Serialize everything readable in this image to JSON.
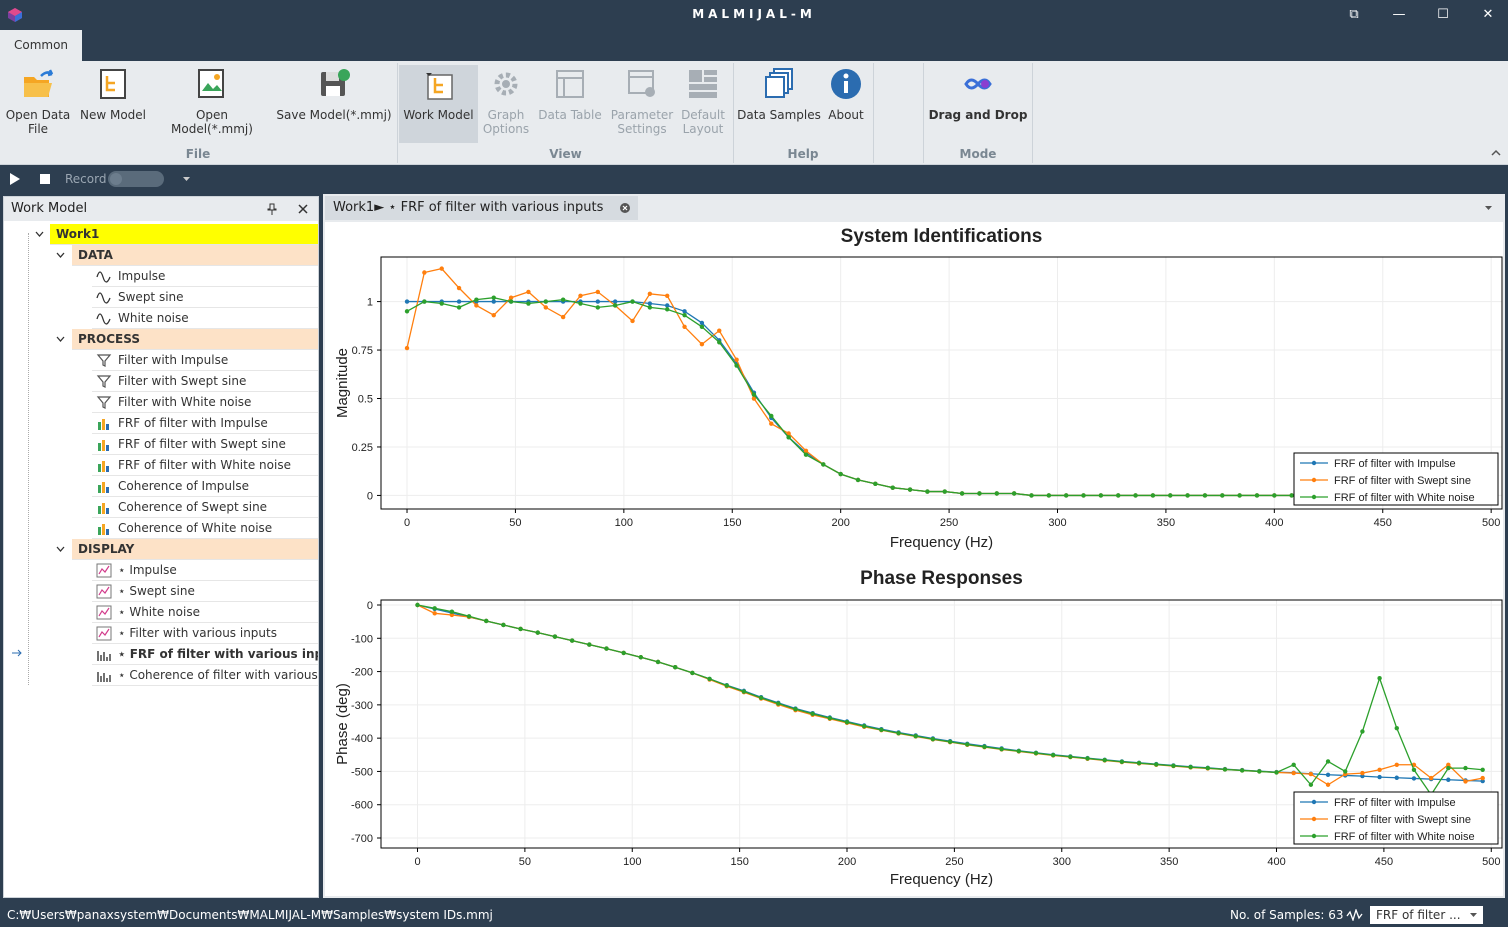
{
  "window": {
    "title": "MALMIJAL-M",
    "controls": [
      "⧉",
      "—",
      "☐",
      "✕"
    ]
  },
  "tabs": [
    "Common"
  ],
  "ribbon": {
    "file": {
      "label": "File",
      "buttons": [
        "Open Data File",
        "New Model",
        "Open Model(*.mmj)",
        "Save Model(*.mmj)"
      ]
    },
    "view": {
      "label": "View",
      "buttons": [
        "Work Model",
        "Graph Options",
        "Data Table",
        "Parameter Settings",
        "Default Layout"
      ]
    },
    "help": {
      "label": "Help",
      "buttons": [
        "Data Samples",
        "About"
      ]
    },
    "mode": {
      "label": "Mode",
      "buttons": [
        "Drag and Drop"
      ]
    }
  },
  "toolbar": {
    "record_label": "Record"
  },
  "work_model": {
    "title": "Work Model",
    "root": "Work1",
    "data_label": "DATA",
    "data_items": [
      "Impulse",
      "Swept sine",
      "White noise"
    ],
    "process_label": "PROCESS",
    "process_items": [
      "Filter with Impulse",
      "Filter with Swept sine",
      "Filter with White noise",
      "FRF of filter with Impulse",
      "FRF of filter with Swept sine",
      "FRF of filter with White noise",
      "Coherence of Impulse",
      "Coherence of Swept sine",
      "Coherence of White noise"
    ],
    "display_label": "DISPLAY",
    "display_items": [
      "⋆ Impulse",
      "⋆ Swept sine",
      "⋆ White noise",
      "⋆ Filter with various inputs",
      "⋆ FRF of filter with various inputs",
      "⋆ Coherence of filter with various inputs"
    ]
  },
  "document": {
    "tab_label": "Work1► ⋆ FRF of filter with various inputs"
  },
  "chart_data": [
    {
      "type": "line",
      "title": "System Identifications",
      "xlabel": "Frequency (Hz)",
      "ylabel": "Magnitude",
      "xlim": [
        -12,
        505
      ],
      "ylim": [
        -0.07,
        1.23
      ],
      "xticks": [
        0,
        50,
        100,
        150,
        200,
        250,
        300,
        350,
        400,
        450,
        500
      ],
      "yticks": [
        0,
        0.25,
        0.5,
        0.75,
        1
      ],
      "ytick_labels": [
        "0",
        "0.25",
        "0.5",
        "0.75",
        "1"
      ],
      "legend": "bottom-right",
      "x": [
        0,
        8,
        16,
        24,
        32,
        40,
        48,
        56,
        64,
        72,
        80,
        88,
        96,
        104,
        112,
        120,
        128,
        136,
        144,
        152,
        160,
        168,
        176,
        184,
        192,
        200,
        208,
        216,
        224,
        232,
        240,
        248,
        256,
        264,
        272,
        280,
        288,
        296,
        304,
        312,
        320,
        328,
        336,
        344,
        352,
        360,
        368,
        376,
        384,
        392,
        400,
        408,
        416,
        424,
        432,
        440,
        448,
        456,
        464,
        472,
        480,
        488,
        496
      ],
      "series": [
        {
          "name": "FRF of filter with Impulse",
          "color": "#1f77b4",
          "values": [
            1,
            1,
            1,
            1,
            1,
            1,
            1,
            1,
            1,
            1,
            1,
            1,
            1,
            1,
            0.99,
            0.98,
            0.95,
            0.89,
            0.8,
            0.68,
            0.53,
            0.4,
            0.3,
            0.22,
            0.16,
            0.11,
            0.08,
            0.06,
            0.04,
            0.03,
            0.02,
            0.02,
            0.01,
            0.01,
            0.01,
            0.01,
            0,
            0,
            0,
            0,
            0,
            0,
            0,
            0,
            0,
            0,
            0,
            0,
            0,
            0,
            0,
            0,
            0,
            0,
            0,
            0,
            0,
            0,
            0,
            0,
            0,
            0,
            0
          ]
        },
        {
          "name": "FRF of filter with Swept sine",
          "color": "#ff7f0e",
          "values": [
            0.76,
            1.15,
            1.17,
            1.07,
            0.98,
            0.93,
            1.02,
            1.05,
            0.97,
            0.92,
            1.03,
            1.05,
            0.98,
            0.9,
            1.04,
            1.03,
            0.87,
            0.78,
            0.85,
            0.7,
            0.5,
            0.37,
            0.32,
            0.23,
            0.16,
            0.11,
            0.08,
            0.06,
            0.04,
            0.03,
            0.02,
            0.02,
            0.01,
            0.01,
            0.01,
            0.01,
            0,
            0,
            0,
            0,
            0,
            0,
            0,
            0,
            0,
            0,
            0,
            0,
            0,
            0,
            0,
            0,
            0,
            0,
            0,
            0,
            0,
            0,
            0,
            0,
            0,
            0,
            0
          ]
        },
        {
          "name": "FRF of filter with White noise",
          "color": "#2ca02c",
          "values": [
            0.95,
            1,
            0.99,
            0.97,
            1.01,
            1.02,
            1,
            0.99,
            1,
            1.01,
            0.99,
            0.97,
            0.98,
            1,
            0.97,
            0.96,
            0.93,
            0.87,
            0.79,
            0.67,
            0.52,
            0.41,
            0.3,
            0.21,
            0.16,
            0.11,
            0.08,
            0.06,
            0.04,
            0.03,
            0.02,
            0.02,
            0.01,
            0.01,
            0.01,
            0.01,
            0,
            0,
            0,
            0,
            0,
            0,
            0,
            0,
            0,
            0,
            0,
            0,
            0,
            0,
            0,
            0,
            0,
            0,
            0,
            0,
            0,
            0,
            0,
            0,
            0,
            0,
            0
          ]
        }
      ]
    },
    {
      "type": "line",
      "title": "Phase Responses",
      "xlabel": "Frequency (Hz)",
      "ylabel": "Phase (deg)",
      "xlim": [
        -17,
        505
      ],
      "ylim": [
        -730,
        15
      ],
      "xticks": [
        0,
        50,
        100,
        150,
        200,
        250,
        300,
        350,
        400,
        450,
        500
      ],
      "yticks": [
        0,
        -100,
        -200,
        -300,
        -400,
        -500,
        -600,
        -700
      ],
      "ytick_labels": [
        "0",
        "-100",
        "-200",
        "-300",
        "-400",
        "-500",
        "-600",
        "-700"
      ],
      "legend": "bottom-right",
      "x": [
        0,
        8,
        16,
        24,
        32,
        40,
        48,
        56,
        64,
        72,
        80,
        88,
        96,
        104,
        112,
        120,
        128,
        136,
        144,
        152,
        160,
        168,
        176,
        184,
        192,
        200,
        208,
        216,
        224,
        232,
        240,
        248,
        256,
        264,
        272,
        280,
        288,
        296,
        304,
        312,
        320,
        328,
        336,
        344,
        352,
        360,
        368,
        376,
        384,
        392,
        400,
        408,
        416,
        424,
        432,
        440,
        448,
        456,
        464,
        472,
        480,
        488,
        496
      ],
      "series": [
        {
          "name": "FRF of filter with Impulse",
          "color": "#1f77b4",
          "values": [
            0,
            -12,
            -24,
            -36,
            -48,
            -60,
            -72,
            -83,
            -95,
            -107,
            -119,
            -131,
            -144,
            -157,
            -171,
            -187,
            -204,
            -222,
            -241,
            -258,
            -277,
            -294,
            -311,
            -325,
            -338,
            -350,
            -362,
            -373,
            -383,
            -392,
            -401,
            -409,
            -417,
            -424,
            -431,
            -438,
            -444,
            -450,
            -455,
            -460,
            -465,
            -470,
            -474,
            -478,
            -482,
            -486,
            -489,
            -493,
            -496,
            -499,
            -502,
            -504,
            -507,
            -510,
            -512,
            -514,
            -517,
            -519,
            -521,
            -523,
            -525,
            -527,
            -529
          ]
        },
        {
          "name": "FRF of filter with Swept sine",
          "color": "#ff7f0e",
          "values": [
            0,
            -25,
            -30,
            -36,
            -48,
            -60,
            -72,
            -83,
            -95,
            -107,
            -119,
            -131,
            -144,
            -157,
            -171,
            -187,
            -204,
            -224,
            -244,
            -262,
            -281,
            -299,
            -316,
            -330,
            -342,
            -354,
            -366,
            -376,
            -386,
            -395,
            -404,
            -412,
            -420,
            -427,
            -434,
            -440,
            -446,
            -452,
            -457,
            -462,
            -467,
            -472,
            -476,
            -480,
            -484,
            -488,
            -491,
            -494,
            -497,
            -500,
            -503,
            -505,
            -508,
            -540,
            -508,
            -505,
            -495,
            -480,
            -480,
            -520,
            -480,
            -530,
            -520
          ]
        },
        {
          "name": "FRF of filter with White noise",
          "color": "#2ca02c",
          "values": [
            0,
            -10,
            -20,
            -34,
            -48,
            -60,
            -72,
            -83,
            -95,
            -107,
            -119,
            -131,
            -144,
            -157,
            -171,
            -187,
            -204,
            -222,
            -242,
            -260,
            -279,
            -296,
            -313,
            -327,
            -340,
            -352,
            -364,
            -375,
            -385,
            -394,
            -403,
            -411,
            -419,
            -426,
            -433,
            -439,
            -445,
            -451,
            -456,
            -461,
            -466,
            -471,
            -475,
            -479,
            -483,
            -487,
            -490,
            -494,
            -497,
            -500,
            -503,
            -480,
            -540,
            -470,
            -500,
            -380,
            -220,
            -370,
            -495,
            -570,
            -490,
            -490,
            -495
          ]
        }
      ]
    }
  ],
  "status": {
    "path": "C:₩Users₩panaxsystem₩Documents₩MALMIJAL-M₩Samples₩system IDs.mmj",
    "samples": "No. of Samples: 63",
    "selector": "FRF of filter ..."
  },
  "colors": {
    "chrome": "#2d3e50",
    "ribbon": "#e8ebee",
    "root_highlight": "#ffff00",
    "category": "#fde2c7"
  }
}
